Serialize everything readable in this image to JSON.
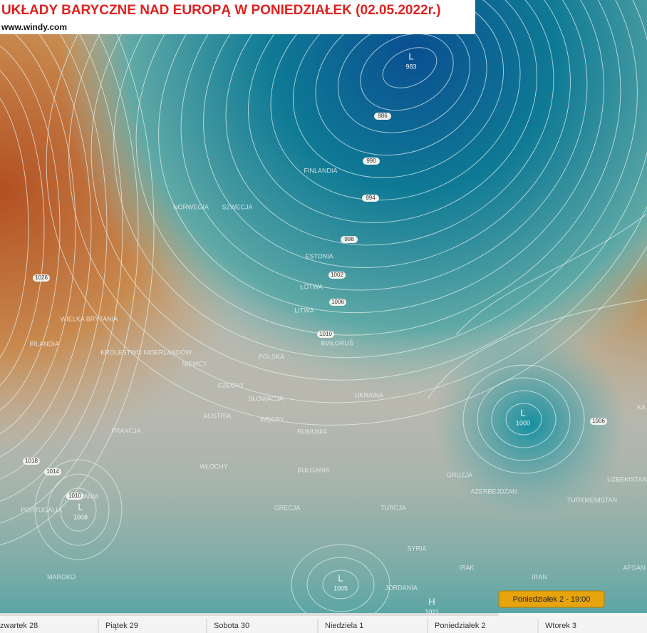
{
  "header": {
    "title": "UKŁADY BARYCZNE NAD EUROPĄ W PONIEDZIAŁEK (02.05.2022r.)",
    "source": "www.windy.com"
  },
  "countries": [
    "FINLANDIA",
    "NORWEGIA",
    "SZWECJA",
    "ESTONIA",
    "ŁOTWA",
    "LITWA",
    "BIAŁORUŚ",
    "POLSKA",
    "NIEMCY",
    "KRÓLESTWO NIDERLANDÓW",
    "WIELKA BRYTANIA",
    "IRLANDIA",
    "CZECHY",
    "SŁOWACJA",
    "WĘGRY",
    "AUSTRIA",
    "UKRAINA",
    "RUMUNIA",
    "FRANCJA",
    "WŁOCHY",
    "BUŁGARIA",
    "GRECJA",
    "TURCJA",
    "HISZPANIA",
    "PORTUGALIA",
    "MAROKO",
    "SYRIA",
    "IRAK",
    "IRAN",
    "JORDANIA",
    "AZERBEJDŻAN",
    "GRUZJA",
    "TURKMENISTAN",
    "UZBEKISTAN",
    "AFGAN",
    "KA"
  ],
  "pressure_centers": [
    {
      "symbol": "L",
      "value": 983
    },
    {
      "symbol": "L",
      "value": 1008
    },
    {
      "symbol": "L",
      "value": 1000
    },
    {
      "symbol": "L",
      "value": 1005
    },
    {
      "symbol": "H",
      "value": 1011
    }
  ],
  "isobar_labels": [
    986,
    990,
    994,
    998,
    1002,
    1006,
    1010,
    1026,
    1018,
    1014,
    1010,
    1006
  ],
  "timeline": {
    "days": [
      "zwartek 28",
      "Piątek 29",
      "Sobota 30",
      "Niedziela 1",
      "Poniedziałek 2",
      "Wtorek 3"
    ],
    "current": "Poniedziałek 2 - 19:00"
  }
}
